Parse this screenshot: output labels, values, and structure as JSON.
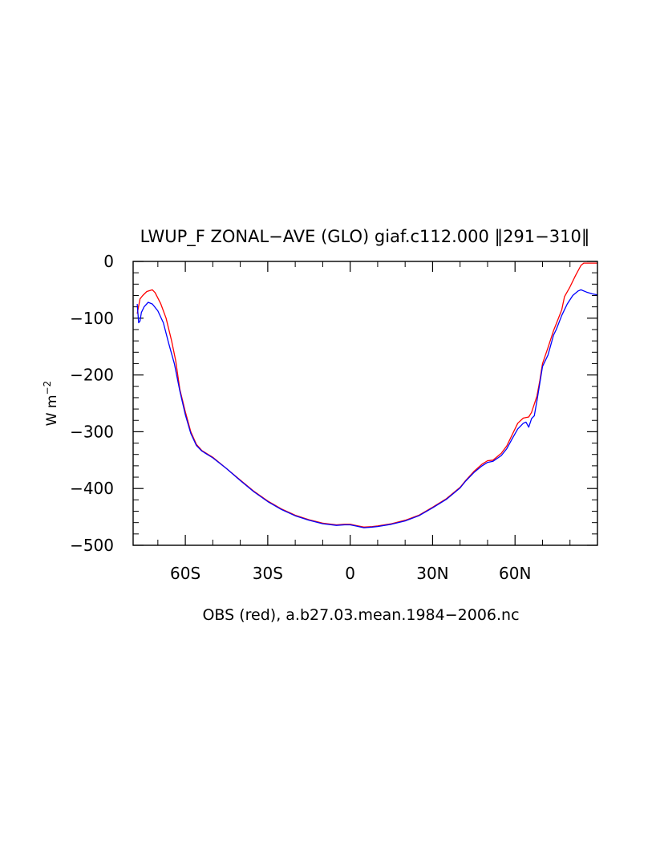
{
  "chart_data": {
    "type": "line",
    "title": "LWUP_F ZONAL−AVE (GLO) giaf.c112.000 ‖291−310‖",
    "xlabel": "OBS (red), a.b27.03.mean.1984−2006.nc",
    "ylabel": "W m",
    "ylabel_exponent": "−2",
    "xlim": [
      -79,
      90
    ],
    "ylim": [
      -500,
      0
    ],
    "xticks": [
      {
        "value": -60,
        "label": "60S"
      },
      {
        "value": -30,
        "label": "30S"
      },
      {
        "value": 0,
        "label": "0"
      },
      {
        "value": 30,
        "label": "30N"
      },
      {
        "value": 60,
        "label": "60N"
      }
    ],
    "yticks": [
      {
        "value": 0,
        "label": "0"
      },
      {
        "value": -100,
        "label": "−100"
      },
      {
        "value": -200,
        "label": "−200"
      },
      {
        "value": -300,
        "label": "−300"
      },
      {
        "value": -400,
        "label": "−400"
      },
      {
        "value": -500,
        "label": "−500"
      }
    ],
    "grid": false,
    "series": [
      {
        "color": "#ff0000",
        "points": [
          [
            -77.5,
            -92
          ],
          [
            -76.5,
            -66
          ],
          [
            -75.5,
            -60
          ],
          [
            -74,
            -53
          ],
          [
            -72,
            -50
          ],
          [
            -71,
            -55
          ],
          [
            -69,
            -74
          ],
          [
            -67,
            -100
          ],
          [
            -65,
            -140
          ],
          [
            -63.5,
            -175
          ],
          [
            -62,
            -225
          ],
          [
            -60,
            -265
          ],
          [
            -58,
            -300
          ],
          [
            -56,
            -322
          ],
          [
            -54,
            -333
          ],
          [
            -50,
            -345
          ],
          [
            -45,
            -365
          ],
          [
            -40,
            -385
          ],
          [
            -35,
            -405
          ],
          [
            -30,
            -422
          ],
          [
            -25,
            -436
          ],
          [
            -20,
            -447
          ],
          [
            -15,
            -455
          ],
          [
            -10,
            -461
          ],
          [
            -5,
            -464
          ],
          [
            -2,
            -463
          ],
          [
            0,
            -463
          ],
          [
            2,
            -465
          ],
          [
            5,
            -468
          ],
          [
            8,
            -467
          ],
          [
            10,
            -466
          ],
          [
            15,
            -462
          ],
          [
            20,
            -456
          ],
          [
            25,
            -447
          ],
          [
            30,
            -433
          ],
          [
            35,
            -418
          ],
          [
            40,
            -398
          ],
          [
            42,
            -386
          ],
          [
            45,
            -370
          ],
          [
            48,
            -357
          ],
          [
            50,
            -351
          ],
          [
            52,
            -350
          ],
          [
            55,
            -338
          ],
          [
            57,
            -325
          ],
          [
            59,
            -305
          ],
          [
            61,
            -285
          ],
          [
            63,
            -276
          ],
          [
            65,
            -274
          ],
          [
            66,
            -266
          ],
          [
            68,
            -237
          ],
          [
            69,
            -210
          ],
          [
            70,
            -180
          ],
          [
            72,
            -152
          ],
          [
            74,
            -122
          ],
          [
            75,
            -110
          ],
          [
            77,
            -85
          ],
          [
            78,
            -62
          ],
          [
            80,
            -45
          ],
          [
            82,
            -25
          ],
          [
            84,
            -7
          ],
          [
            85,
            -3
          ],
          [
            90,
            -3
          ]
        ]
      },
      {
        "color": "#0000ff",
        "points": [
          [
            -77.5,
            -75
          ],
          [
            -77,
            -108
          ],
          [
            -76.5,
            -105
          ],
          [
            -76,
            -90
          ],
          [
            -75,
            -80
          ],
          [
            -73.5,
            -72
          ],
          [
            -72,
            -75
          ],
          [
            -70,
            -87
          ],
          [
            -68,
            -108
          ],
          [
            -66,
            -145
          ],
          [
            -64,
            -180
          ],
          [
            -62,
            -228
          ],
          [
            -60,
            -270
          ],
          [
            -58,
            -303
          ],
          [
            -56,
            -324
          ],
          [
            -54,
            -334
          ],
          [
            -50,
            -346
          ],
          [
            -45,
            -365
          ],
          [
            -40,
            -386
          ],
          [
            -35,
            -406
          ],
          [
            -30,
            -423
          ],
          [
            -25,
            -437
          ],
          [
            -20,
            -448
          ],
          [
            -15,
            -456
          ],
          [
            -10,
            -462
          ],
          [
            -5,
            -465
          ],
          [
            -2,
            -464
          ],
          [
            0,
            -464
          ],
          [
            2,
            -466
          ],
          [
            5,
            -469
          ],
          [
            8,
            -468
          ],
          [
            10,
            -467
          ],
          [
            15,
            -463
          ],
          [
            20,
            -457
          ],
          [
            25,
            -448
          ],
          [
            30,
            -434
          ],
          [
            35,
            -419
          ],
          [
            40,
            -399
          ],
          [
            42,
            -387
          ],
          [
            45,
            -372
          ],
          [
            48,
            -360
          ],
          [
            50,
            -354
          ],
          [
            52,
            -352
          ],
          [
            55,
            -342
          ],
          [
            57,
            -330
          ],
          [
            59,
            -312
          ],
          [
            61,
            -295
          ],
          [
            63,
            -285
          ],
          [
            64,
            -283
          ],
          [
            65,
            -292
          ],
          [
            66,
            -277
          ],
          [
            67,
            -272
          ],
          [
            68,
            -245
          ],
          [
            70,
            -185
          ],
          [
            72,
            -165
          ],
          [
            74,
            -130
          ],
          [
            75,
            -120
          ],
          [
            77,
            -95
          ],
          [
            79,
            -75
          ],
          [
            81,
            -60
          ],
          [
            83,
            -52
          ],
          [
            84,
            -50
          ],
          [
            86,
            -54
          ],
          [
            88,
            -57
          ],
          [
            90,
            -59
          ]
        ]
      }
    ]
  }
}
